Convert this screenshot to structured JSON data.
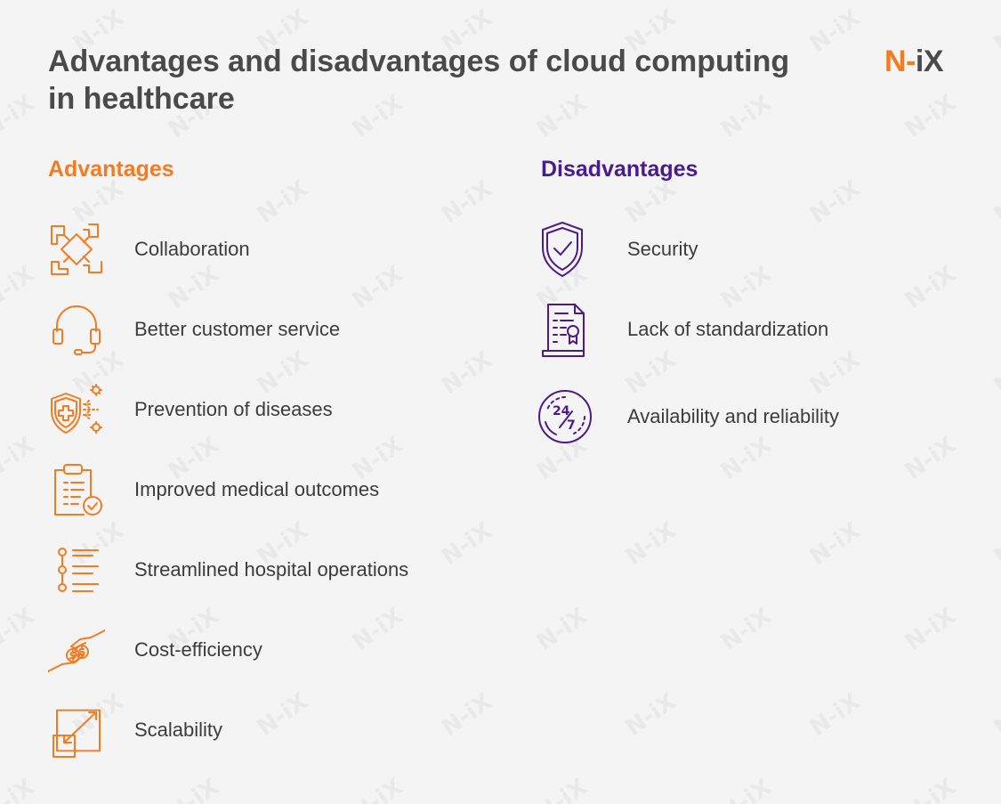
{
  "title": "Advantages and disadvantages of cloud computing in healthcare",
  "logo": {
    "n": "N",
    "dash": "-",
    "ix": "iX",
    "watermark": "N-iX"
  },
  "colors": {
    "orange": "#f47b20",
    "purple": "#4b1a8c",
    "text": "#3c3c3c",
    "title": "#4a4a4a"
  },
  "advantages": {
    "heading": "Advantages",
    "items": [
      {
        "label": "Collaboration",
        "icon": "collaboration-hands-icon"
      },
      {
        "label": "Better customer service",
        "icon": "headset-icon"
      },
      {
        "label": "Prevention of diseases",
        "icon": "shield-medical-icon"
      },
      {
        "label": "Improved medical outcomes",
        "icon": "clipboard-check-icon"
      },
      {
        "label": "Streamlined hospital operations",
        "icon": "process-list-icon"
      },
      {
        "label": "Cost-efficiency",
        "icon": "hands-coins-icon"
      },
      {
        "label": "Scalability",
        "icon": "scale-resize-icon"
      }
    ]
  },
  "disadvantages": {
    "heading": "Disadvantages",
    "items": [
      {
        "label": "Security",
        "icon": "shield-check-icon"
      },
      {
        "label": "Lack of standardization",
        "icon": "certificate-document-icon"
      },
      {
        "label": "Availability and reliability",
        "icon": "clock-24-7-icon"
      }
    ]
  }
}
